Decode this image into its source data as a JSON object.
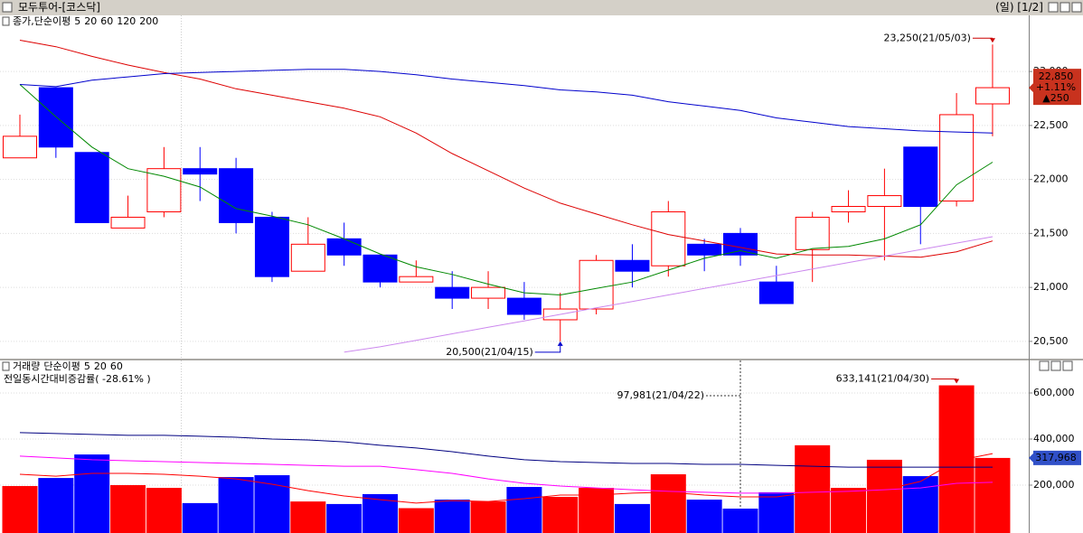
{
  "window": {
    "title": "모두투어-[코스닥]",
    "period": "(일) [1/2]"
  },
  "chart_data": [
    {
      "type": "candlestick",
      "legend_title": "종가,단순이평",
      "up_color": "#ff0000",
      "down_color": "#0000ff",
      "open": [
        22200,
        22850,
        22250,
        21550,
        21700,
        22100,
        22100,
        21650,
        21150,
        21450,
        21300,
        21050,
        21000,
        20900,
        20900,
        20700,
        20800,
        21250,
        21200,
        21400,
        21500,
        21050,
        21350,
        21700,
        21750,
        22300,
        21800,
        22700
      ],
      "high": [
        22600,
        22850,
        22250,
        21850,
        22300,
        22300,
        22200,
        21700,
        21650,
        21600,
        21300,
        21250,
        21150,
        21150,
        21050,
        20950,
        21300,
        21400,
        21800,
        21450,
        21550,
        21200,
        21700,
        21900,
        22100,
        22300,
        22800,
        23250
      ],
      "low": [
        22200,
        22200,
        21600,
        21550,
        21650,
        21800,
        21500,
        21050,
        21150,
        21200,
        21000,
        21050,
        20800,
        20800,
        20700,
        20500,
        20750,
        21000,
        21100,
        21150,
        21200,
        20850,
        21050,
        21600,
        21250,
        21400,
        21750,
        22400
      ],
      "close": [
        22400,
        22300,
        21600,
        21650,
        22100,
        22050,
        21600,
        21100,
        21400,
        21300,
        21050,
        21100,
        20900,
        21000,
        20750,
        20800,
        21250,
        21150,
        21700,
        21300,
        21300,
        20850,
        21650,
        21750,
        21850,
        21750,
        22600,
        22850
      ],
      "series": [
        {
          "name": "5",
          "color": "#008800",
          "values": [
            22880,
            22580,
            22300,
            22100,
            22030,
            21930,
            21730,
            21660,
            21580,
            21450,
            21310,
            21190,
            21120,
            21030,
            20950,
            20930,
            20990,
            21050,
            21160,
            21270,
            21340,
            21270,
            21360,
            21380,
            21450,
            21580,
            21950,
            22160
          ]
        },
        {
          "name": "20",
          "color": "#dd0000",
          "values": [
            23290,
            23230,
            23140,
            23060,
            22990,
            22930,
            22840,
            22780,
            22720,
            22660,
            22580,
            22430,
            22240,
            22080,
            21920,
            21780,
            21680,
            21580,
            21490,
            21430,
            21370,
            21310,
            21300,
            21300,
            21290,
            21280,
            21330,
            21430
          ]
        },
        {
          "name": "60",
          "color": "#0000cc",
          "values": [
            22880,
            22860,
            22920,
            22950,
            22980,
            22990,
            23000,
            23010,
            23020,
            23020,
            23000,
            22970,
            22930,
            22900,
            22870,
            22830,
            22810,
            22780,
            22720,
            22680,
            22640,
            22570,
            22530,
            22490,
            22470,
            22450,
            22440,
            22430
          ]
        },
        {
          "name": "120",
          "color": "#cc88ee",
          "values": [
            null,
            null,
            null,
            null,
            null,
            null,
            null,
            null,
            null,
            20400,
            20450,
            20510,
            20570,
            20630,
            20690,
            20750,
            20810,
            20870,
            20930,
            20990,
            21050,
            21110,
            21170,
            21230,
            21290,
            21350,
            21410,
            21470
          ]
        },
        {
          "name": "200",
          "color": "#ff9900"
        }
      ],
      "ylim": [
        20340,
        23520
      ],
      "yticks": [
        {
          "value": 20500,
          "label": "20,500"
        },
        {
          "value": 21000,
          "label": "21,000"
        },
        {
          "value": 21500,
          "label": "21,500"
        },
        {
          "value": 22000,
          "label": "22,000"
        },
        {
          "value": 22500,
          "label": "22,500"
        },
        {
          "value": 23000,
          "label": "23,000"
        }
      ],
      "grid": true,
      "high_label": "23,250(21/05/03)",
      "low_label": "20,500(21/04/15)",
      "last_labels": [
        "22,850",
        "+1.11%",
        "▲250"
      ]
    },
    {
      "type": "bar",
      "legend_title": "거래량",
      "ma_title": "단순이평",
      "subtitle": "전일동시간대비증감률( -28.61% )",
      "values": [
        196000,
        231000,
        333000,
        200000,
        188000,
        122000,
        235000,
        243000,
        129000,
        118000,
        161000,
        100000,
        137000,
        129000,
        192000,
        149000,
        188000,
        118000,
        247000,
        137000,
        97981,
        169000,
        373000,
        188000,
        310000,
        239000,
        633141,
        317968
      ],
      "series": [
        {
          "name": "5",
          "color": "#ff0000",
          "values": [
            247000,
            239000,
            251000,
            251000,
            247000,
            239000,
            227000,
            204000,
            176000,
            153000,
            137000,
            122000,
            133000,
            129000,
            141000,
            157000,
            157000,
            165000,
            169000,
            157000,
            149000,
            149000,
            169000,
            176000,
            180000,
            216000,
            306000,
            337000
          ]
        },
        {
          "name": "20",
          "color": "#ff00ff",
          "values": [
            326000,
            318000,
            310000,
            306000,
            302000,
            298000,
            294000,
            290000,
            286000,
            282000,
            282000,
            267000,
            251000,
            227000,
            208000,
            196000,
            188000,
            180000,
            173000,
            169000,
            165000,
            165000,
            169000,
            173000,
            180000,
            188000,
            208000,
            212000
          ]
        },
        {
          "name": "60",
          "color": "#000080",
          "values": [
            428000,
            424000,
            420000,
            416000,
            416000,
            412000,
            408000,
            400000,
            396000,
            388000,
            373000,
            361000,
            345000,
            326000,
            310000,
            302000,
            298000,
            294000,
            294000,
            290000,
            290000,
            286000,
            282000,
            278000,
            278000,
            278000,
            278000,
            278000
          ]
        }
      ],
      "ylim": [
        0,
        698000
      ],
      "yticks": [
        {
          "value": 200000,
          "label": "200,000"
        },
        {
          "value": 400000,
          "label": "400,000"
        },
        {
          "value": 600000,
          "label": "600,000"
        }
      ],
      "grid": true,
      "max_label": "633,141(21/04/30)",
      "min_label": "97,981(21/04/22)",
      "last_label": "317,968"
    }
  ]
}
